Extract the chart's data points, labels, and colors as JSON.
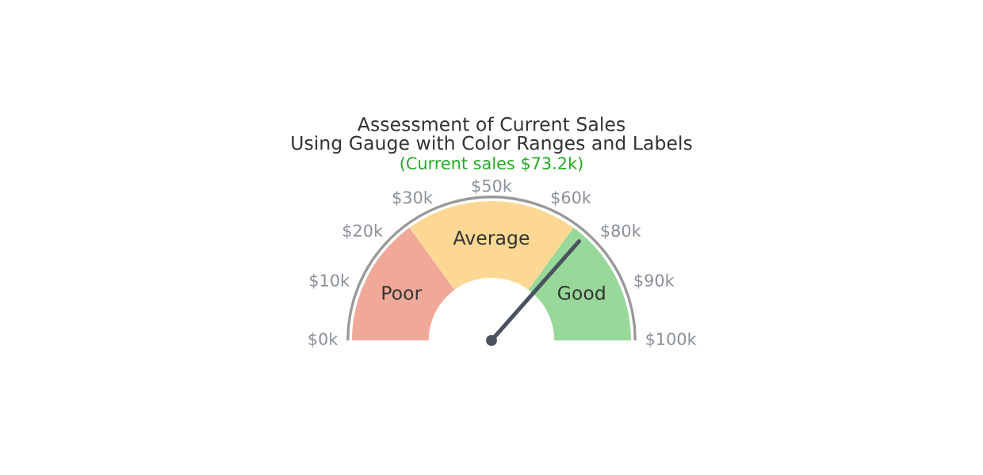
{
  "chart_data": {
    "type": "donut",
    "title": "Assessment of Current Sales\nUsing Gauge with Color Ranges and Labels",
    "annotations": [
      "(Current sales $73.2k)",
      "$0k",
      "$10k",
      "$20k",
      "$30k",
      "$50k",
      "$60k",
      "$80k",
      "$90k",
      "$100k"
    ],
    "categories": [
      "Poor",
      "Average",
      "Good"
    ],
    "values": [
      30,
      40,
      30
    ],
    "colors": [
      "#f0a898",
      "#fdd894",
      "#98d89a"
    ],
    "needle": "Good"
  }
}
